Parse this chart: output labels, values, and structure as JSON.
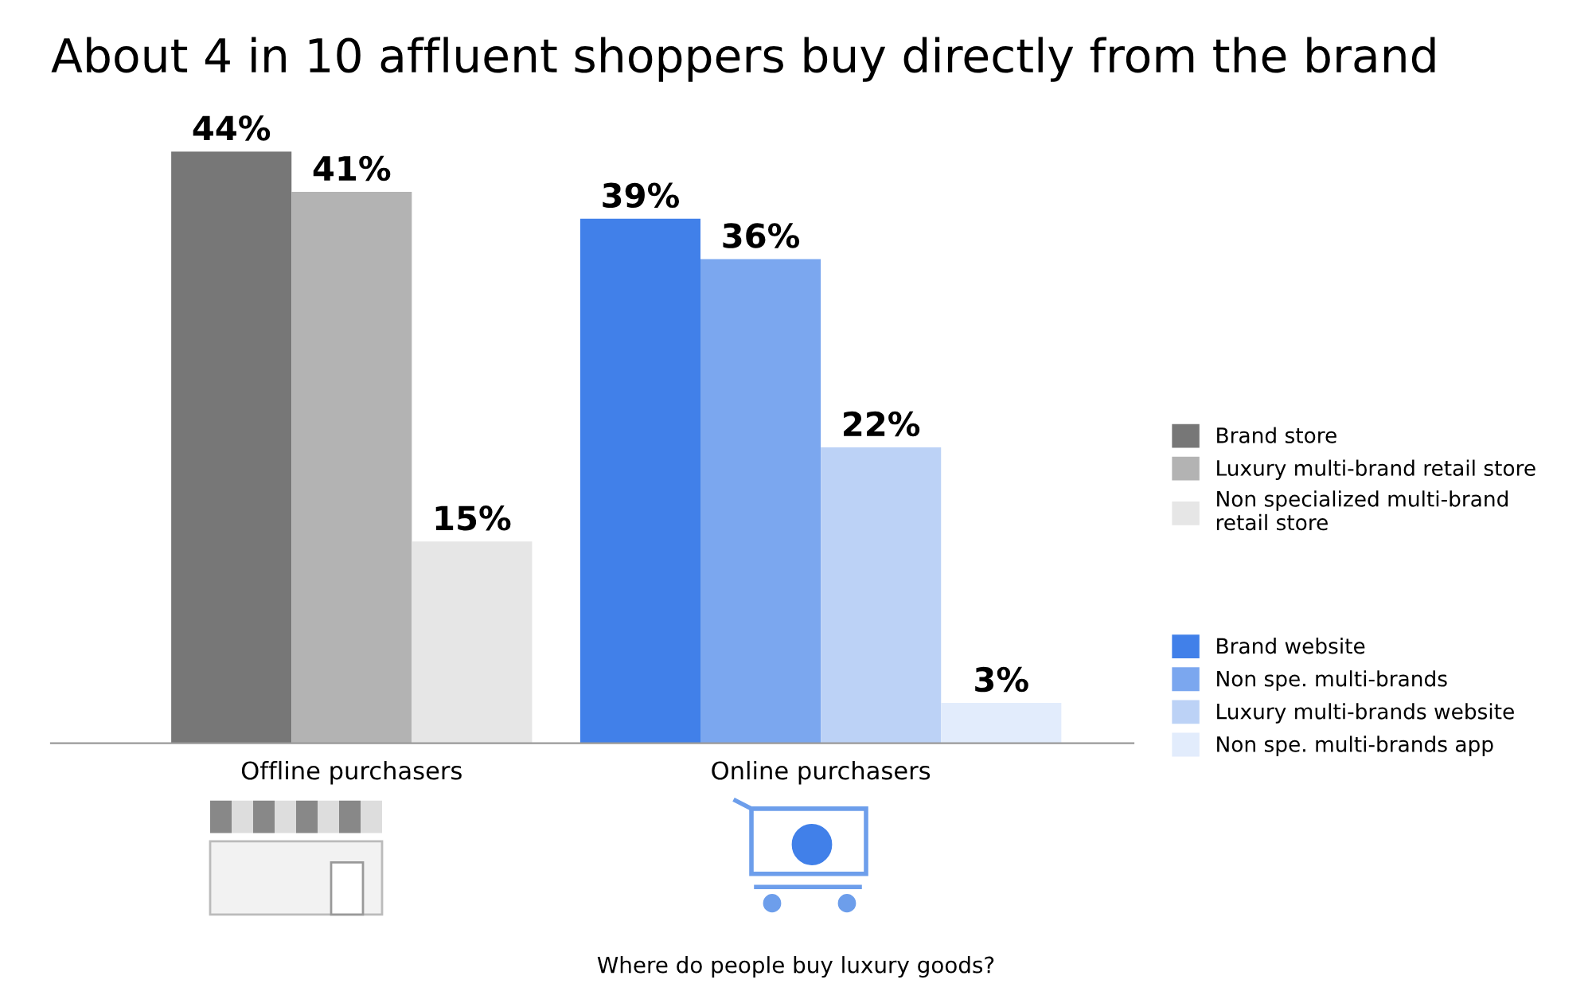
{
  "chart_data": {
    "type": "bar",
    "title": "About 4 in 10 affluent shoppers buy directly from the brand",
    "annotations": [
      "Where do people buy luxury goods?"
    ],
    "categories": [
      "Offline purchasers",
      "Online purchasers"
    ],
    "series": [
      {
        "name": "Brand store",
        "color": "#777777",
        "values": [
          44,
          null
        ],
        "value_labels": [
          "44%",
          null
        ]
      },
      {
        "name": "Luxury multi-brand retail store",
        "color": "#b3b3b3",
        "values": [
          41,
          null
        ],
        "value_labels": [
          "41%",
          null
        ]
      },
      {
        "name": "Non specialized multi-brand retail store",
        "color": "#e6e6e6",
        "values": [
          15,
          null
        ],
        "value_labels": [
          "15%",
          null
        ]
      },
      {
        "name": "Brand website",
        "color": "#4180e9",
        "values": [
          null,
          39
        ],
        "value_labels": [
          null,
          "39%"
        ]
      },
      {
        "name": "Non spe. multi-brands",
        "color": "#7ba7ef",
        "values": [
          null,
          36
        ],
        "value_labels": [
          null,
          "36%"
        ]
      },
      {
        "name": "Luxury multi-brands website",
        "color": "#bcd2f6",
        "values": [
          null,
          22
        ],
        "value_labels": [
          null,
          "22%"
        ]
      },
      {
        "name": "Non spe. multi-brands app",
        "color": "#e2ecfc",
        "values": [
          null,
          3
        ],
        "value_labels": [
          null,
          "3%"
        ]
      }
    ],
    "tick_labels": "x",
    "grid": false,
    "legend": "right"
  }
}
